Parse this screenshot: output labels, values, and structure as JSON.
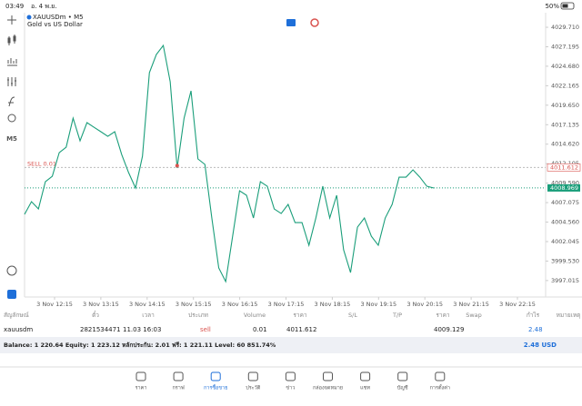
{
  "status_bar": {
    "time": "03:49",
    "date": "อ. 4 พ.ย.",
    "battery": "50%"
  },
  "toolbar": {
    "period": "M5"
  },
  "chart_data": {
    "type": "line",
    "symbol": "XAUUSDm • M5",
    "description": "Gold vs US Dollar",
    "color": "#1a9e7a",
    "values": [
      4005.56,
      4007.2,
      4006.26,
      4009.78,
      4010.48,
      4013.53,
      4014.23,
      4017.98,
      4015.05,
      4017.4,
      4016.81,
      4016.23,
      4015.64,
      4016.23,
      4013.29,
      4010.95,
      4008.96,
      4013.06,
      4023.85,
      4026.19,
      4027.36,
      4022.67,
      4011.54,
      4017.98,
      4021.5,
      4012.71,
      4012.01,
      4005.09,
      3998.64,
      3996.88,
      4002.74,
      4008.6,
      4008.02,
      4005.09,
      4009.78,
      4009.19,
      4006.26,
      4005.67,
      4006.85,
      4004.5,
      4004.5,
      4001.57,
      4005.09,
      4009.19,
      4005.09,
      4008.02,
      4000.98,
      3998.05,
      4003.91,
      4005.09,
      4002.74,
      4001.57,
      4005.09,
      4006.85,
      4010.36,
      4010.36,
      4011.3,
      4010.36,
      4009.19,
      4008.96
    ],
    "ylim": [
      3994.89,
      4031.59
    ],
    "yticks": [
      {
        "value": 4029.71,
        "label": "4029.710"
      },
      4027.195,
      {
        "value": 4024.68,
        "label": "4024.680"
      },
      4022.165,
      {
        "value": 4019.65,
        "label": "4019.650"
      },
      4017.135,
      {
        "value": 4014.62,
        "label": "4014.620"
      },
      4012.105,
      {
        "value": 4009.59,
        "label": "4009.590"
      },
      4007.075,
      {
        "value": 4004.56,
        "label": "4004.560"
      },
      4002.045,
      {
        "value": 3999.53,
        "label": "3999.530"
      },
      3997.015
    ],
    "xtick_labels": [
      "3 Nov 12:15",
      "3 Nov 13:15",
      "3 Nov 14:15",
      "3 Nov 15:15",
      "3 Nov 16:15",
      "3 Nov 17:15",
      "3 Nov 18:15",
      "3 Nov 19:15",
      "3 Nov 20:15",
      "3 Nov 21:15",
      "3 Nov 22:15"
    ],
    "order_line": {
      "label": "SELL 0.01",
      "price": 4011.612,
      "color": "#d9534f"
    },
    "current_price": {
      "price": 4008.969,
      "color": "#1a9e7a"
    }
  },
  "table": {
    "headers": [
      "สัญลักษณ์",
      "ตั๋ว",
      "เวลา",
      "ประเภท",
      "Volume",
      "ราคา",
      "S/L",
      "T/P",
      "ราคา",
      "Swap",
      "กำไร",
      "หมายเหตุ"
    ],
    "row": {
      "symbol": "xauusdm",
      "ticket": "2821534471",
      "time": "11.03 16:03",
      "type": "sell",
      "volume": "0.01",
      "open_price": "4011.612",
      "price": "4009.129",
      "profit": "2.48"
    },
    "summary": "Balance: 1 220.64 Equity: 1 223.12 หลักประกัน: 2.01 ฟรี: 1 221.11 Level: 60 851.74%",
    "total": "2.48  USD"
  },
  "tabs": [
    "ราคา",
    "กราฟ",
    "การซื้อขาย",
    "ประวัติ",
    "ข่าว",
    "กล่องจดหมาย",
    "แชท",
    "บัญชี",
    "การตั้งค่า"
  ]
}
